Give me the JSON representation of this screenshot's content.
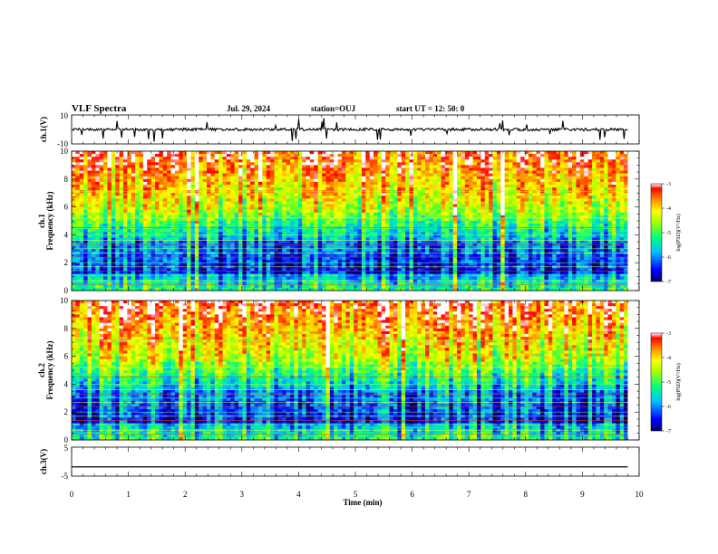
{
  "header": {
    "title": "VLF Spectra",
    "date": "Jul. 29, 2024",
    "station": "station=OUJ",
    "start_ut": "start  UT =  12: 50: 0"
  },
  "chart_data": [
    {
      "id": "ch1-waveform",
      "type": "line",
      "ylabel": "ch.1(V)",
      "yticks": [
        "10",
        "-10"
      ],
      "ylim": [
        -10,
        10
      ],
      "xlim": [
        0,
        10
      ],
      "baseline_value": 0,
      "color": "#000000"
    },
    {
      "id": "ch1-spectrogram",
      "type": "heatmap",
      "ylabel": "ch.1\nFrequency (kHz)",
      "yticks": [
        "0",
        "2",
        "4",
        "6",
        "8",
        "10"
      ],
      "ylim": [
        0,
        10
      ],
      "xlim": [
        0,
        10
      ],
      "colorbar": {
        "label": "log(PSD)(V²/Hz)",
        "range": [
          -7,
          -3
        ],
        "ticks": [
          "-3",
          "-4",
          "-5",
          "-6",
          "-7"
        ]
      }
    },
    {
      "id": "ch2-spectrogram",
      "type": "heatmap",
      "ylabel": "ch.2\nFrequency (kHz)",
      "yticks": [
        "0",
        "2",
        "4",
        "6",
        "8",
        "10"
      ],
      "ylim": [
        0,
        10
      ],
      "xlim": [
        0,
        10
      ],
      "colorbar": {
        "label": "log(PSD)(V²/Hz)",
        "range": [
          -7,
          -3
        ],
        "ticks": [
          "-3",
          "-4",
          "-5",
          "-6",
          "-7"
        ]
      }
    },
    {
      "id": "ch3-waveform",
      "type": "line",
      "ylabel": "ch.3(V)",
      "yticks": [
        "5",
        "-5"
      ],
      "ylim": [
        -5,
        5
      ],
      "xlim": [
        0,
        10
      ],
      "baseline_value": -1.8,
      "color": "#000000"
    }
  ],
  "x_axis": {
    "label": "Time (min)",
    "ticks": [
      "0",
      "1",
      "2",
      "3",
      "4",
      "5",
      "6",
      "7",
      "8",
      "9",
      "10"
    ],
    "data_end": 9.8
  }
}
